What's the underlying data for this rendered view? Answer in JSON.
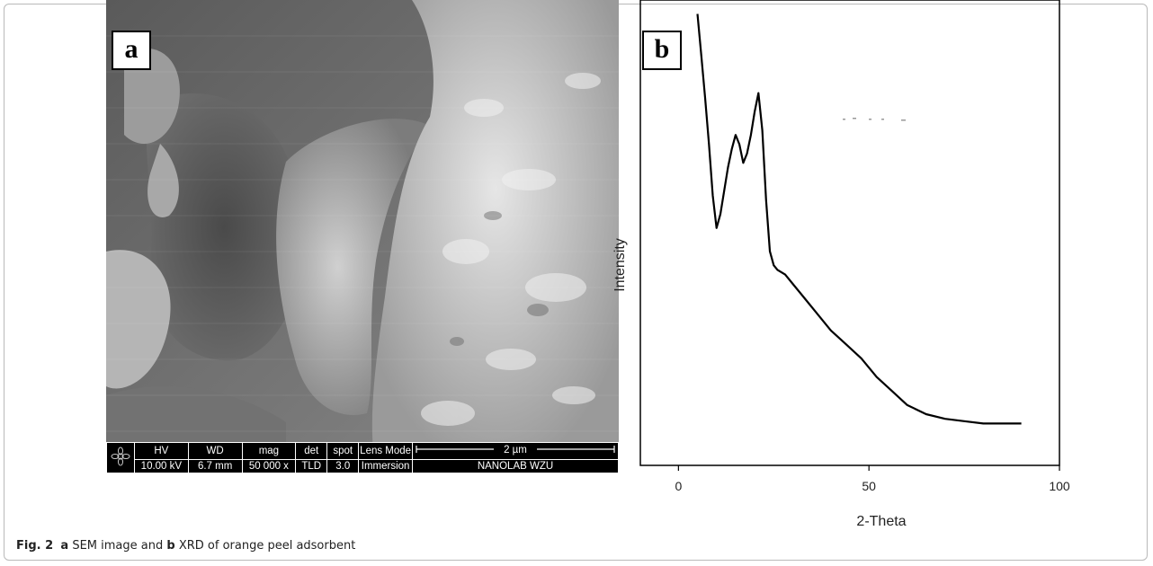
{
  "panel_a": {
    "label": "a",
    "databar": {
      "headers": [
        "HV",
        "WD",
        "mag",
        "det",
        "spot",
        "Lens Mode"
      ],
      "values": [
        "10.00 kV",
        "6.7 mm",
        "50 000 x",
        "TLD",
        "3.0",
        "Immersion"
      ],
      "scale_label": "2 µm",
      "lab_name": "NANOLAB WZU",
      "logo_icon": "lab-logo-icon"
    }
  },
  "panel_b": {
    "label": "b"
  },
  "caption": {
    "fig_label": "Fig. 2",
    "part_a": "a",
    "text_a": " SEM image and ",
    "part_b": "b",
    "text_b": " XRD of orange peel adsorbent"
  },
  "chart_data": {
    "type": "line",
    "title": "",
    "xlabel": "2-Theta",
    "ylabel": "Intensity",
    "xlim": [
      -10,
      100
    ],
    "ylim": [
      0,
      100
    ],
    "xticks": [
      0,
      50,
      100
    ],
    "yticks_shown": false,
    "grid": false,
    "series": [
      {
        "x": [
          5,
          6,
          7,
          8,
          9,
          10,
          11,
          12,
          13,
          14,
          15,
          16,
          17,
          18,
          19,
          20,
          21,
          22,
          23,
          24,
          25,
          26,
          28,
          30,
          33,
          36,
          40,
          44,
          48,
          52,
          56,
          60,
          65,
          70,
          75,
          80,
          85,
          90
        ],
        "values": [
          97,
          88,
          79,
          69,
          58,
          51,
          54,
          59,
          64,
          68,
          71,
          69,
          65,
          67,
          71,
          76,
          80,
          72,
          57,
          46,
          43,
          42,
          41,
          39,
          36,
          33,
          29,
          26,
          23,
          19,
          16,
          13,
          11,
          10,
          9.5,
          9,
          9,
          9
        ]
      }
    ]
  }
}
